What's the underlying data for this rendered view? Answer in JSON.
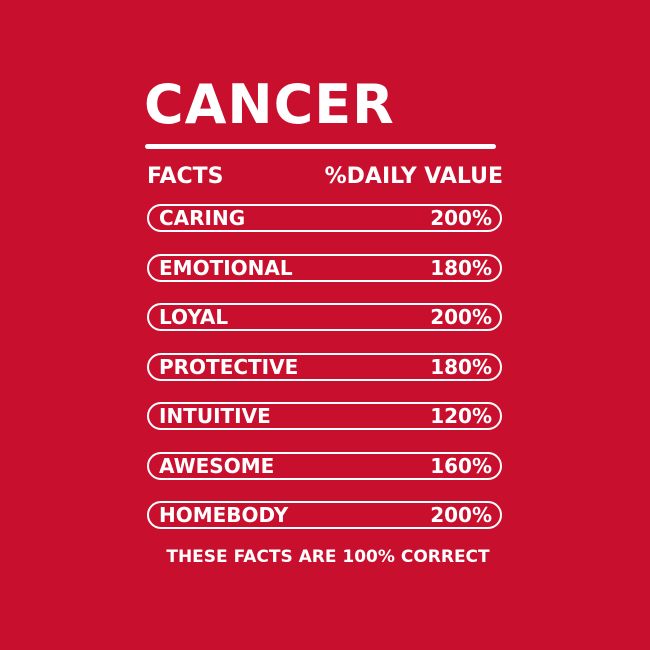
{
  "title": "CANCER",
  "header": {
    "left": "FACTS",
    "right": "%DAILY VALUE"
  },
  "rows": [
    {
      "label": "CARING",
      "value": "200%"
    },
    {
      "label": "EMOTIONAL",
      "value": "180%"
    },
    {
      "label": "LOYAL",
      "value": "200%"
    },
    {
      "label": "PROTECTIVE",
      "value": "180%"
    },
    {
      "label": "INTUITIVE",
      "value": "120%"
    },
    {
      "label": "AWESOME",
      "value": "160%"
    },
    {
      "label": "HOMEBODY",
      "value": "200%"
    }
  ],
  "footer": "THESE FACTS ARE 100% CORRECT",
  "colors": {
    "background": "#c8102e",
    "foreground": "#ffffff"
  }
}
